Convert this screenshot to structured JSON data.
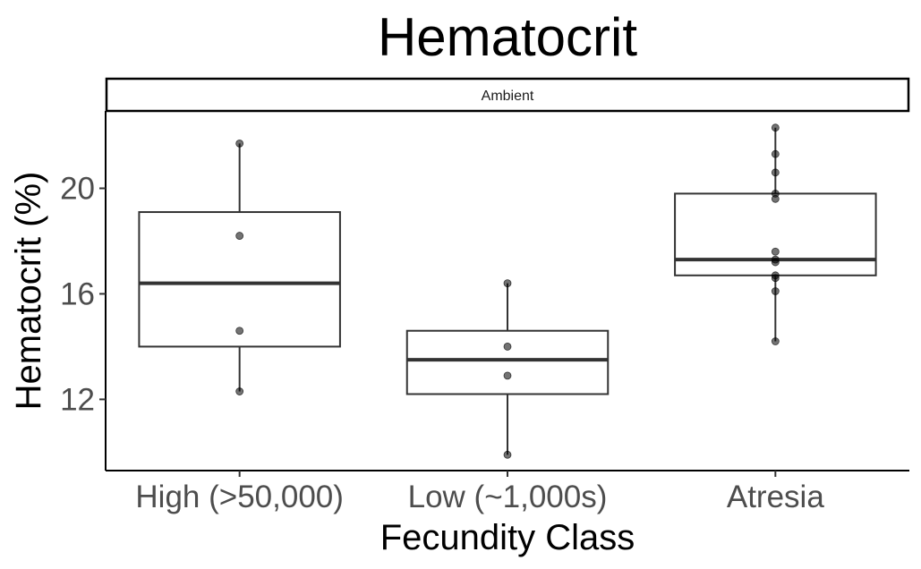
{
  "chart_data": {
    "type": "box",
    "title": "Hematocrit",
    "facet": "Ambient",
    "xlabel": "Fecundity Class",
    "ylabel": "Hematocrit (%)",
    "categories": [
      "High (>50,000)",
      "Low (~1,000s)",
      "Atresia"
    ],
    "yticks": [
      12,
      16,
      20
    ],
    "ylim": [
      9.3,
      22.9
    ],
    "grid": false,
    "boxes": [
      {
        "category": "High (>50,000)",
        "min": 12.3,
        "q1": 14.0,
        "median": 16.4,
        "q3": 19.1,
        "max": 21.7
      },
      {
        "category": "Low (~1,000s)",
        "min": 9.9,
        "q1": 12.2,
        "median": 13.5,
        "q3": 14.6,
        "max": 16.4
      },
      {
        "category": "Atresia",
        "min": 14.2,
        "q1": 16.7,
        "median": 17.3,
        "q3": 19.8,
        "max": 22.3
      }
    ],
    "points": [
      {
        "category": "High (>50,000)",
        "values": [
          21.7,
          18.2,
          14.6,
          12.3
        ]
      },
      {
        "category": "Low (~1,000s)",
        "values": [
          16.4,
          14.0,
          12.9,
          9.9
        ]
      },
      {
        "category": "Atresia",
        "values": [
          22.3,
          21.3,
          20.6,
          19.8,
          19.6,
          17.6,
          17.3,
          17.2,
          16.7,
          16.6,
          16.1,
          14.2
        ]
      }
    ]
  }
}
